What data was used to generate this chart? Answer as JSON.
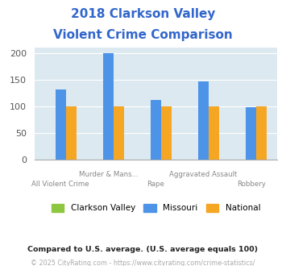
{
  "title_line1": "2018 Clarkson Valley",
  "title_line2": "Violent Crime Comparison",
  "title_color": "#3366cc",
  "categories": [
    "All Violent Crime",
    "Murder & Mans...",
    "Rape",
    "Aggravated Assault",
    "Robbery"
  ],
  "line1_labels": [
    "",
    "Murder & Mans...",
    "",
    "Aggravated Assault",
    ""
  ],
  "line2_labels": [
    "All Violent Crime",
    "",
    "Rape",
    "",
    "Robbery"
  ],
  "clarkson_values": [
    0,
    0,
    0,
    0,
    0
  ],
  "missouri_values": [
    132,
    200,
    112,
    147,
    99
  ],
  "national_values": [
    100,
    100,
    100,
    100,
    100
  ],
  "clarkson_color": "#8dc63f",
  "missouri_color": "#4d94e8",
  "national_color": "#f5a623",
  "bg_color": "#dce9f0",
  "ylim": [
    0,
    210
  ],
  "yticks": [
    0,
    50,
    100,
    150,
    200
  ],
  "legend_labels": [
    "Clarkson Valley",
    "Missouri",
    "National"
  ],
  "footnote1": "Compared to U.S. average. (U.S. average equals 100)",
  "footnote2": "© 2025 CityRating.com - https://www.cityrating.com/crime-statistics/",
  "footnote1_color": "#222222",
  "footnote2_color": "#aaaaaa"
}
